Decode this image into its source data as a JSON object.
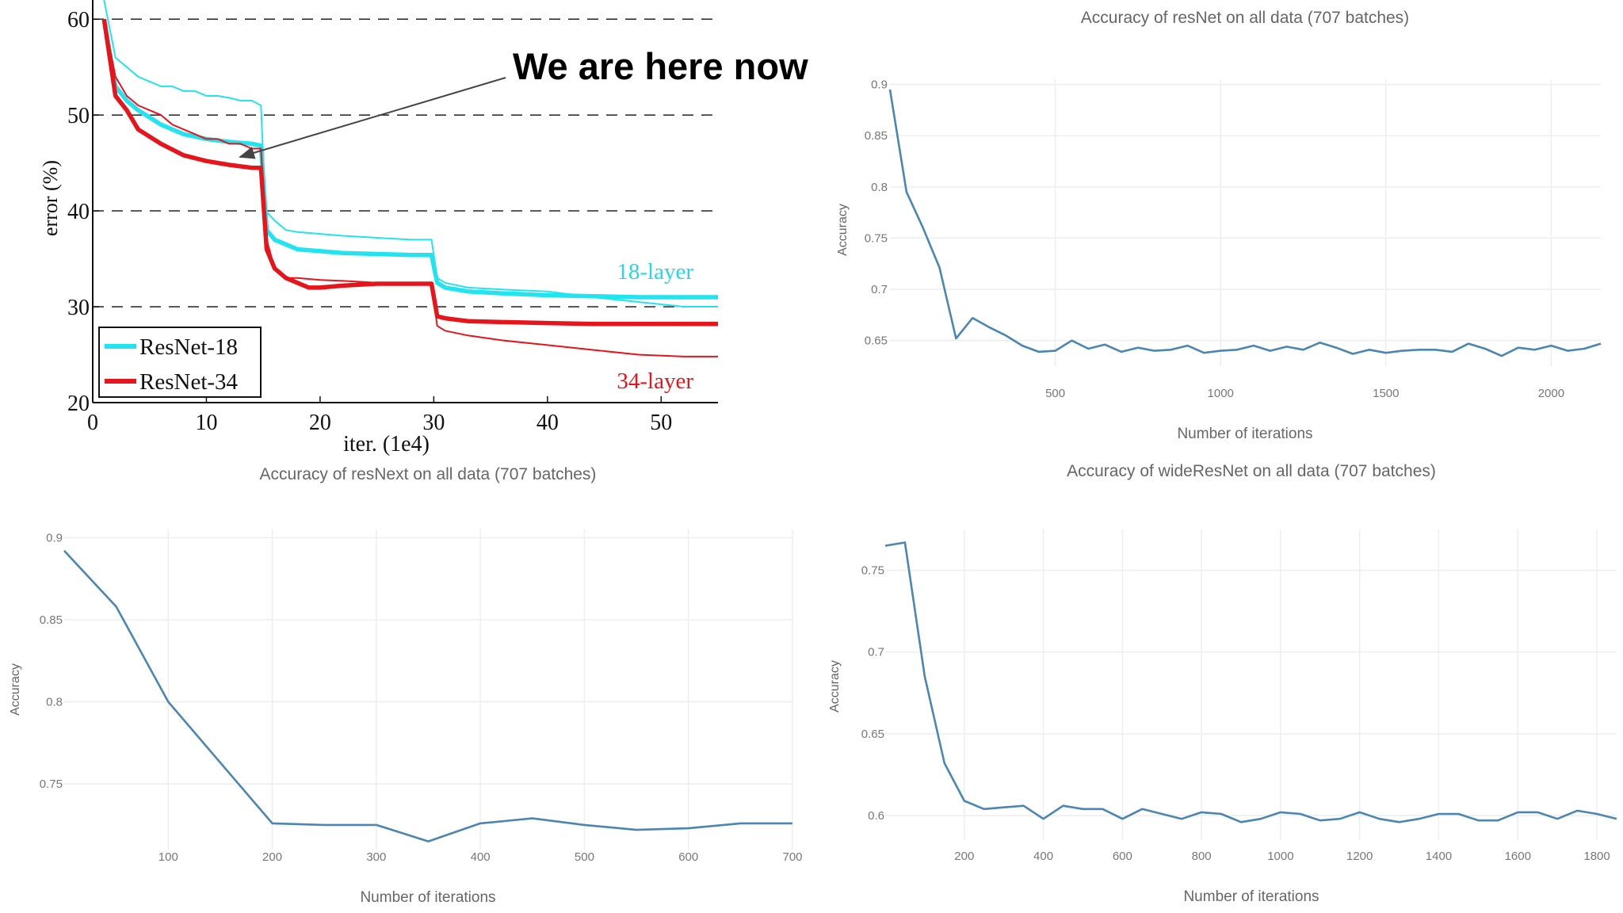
{
  "annotation": {
    "text": "We are here now"
  },
  "chart_data": [
    {
      "type": "line",
      "xlabel": "iter. (1e4)",
      "ylabel": "error (%)",
      "xlim": [
        0,
        55
      ],
      "ylim": [
        20,
        62
      ],
      "xticks": [
        0,
        10,
        20,
        30,
        40,
        50
      ],
      "yticks": [
        20,
        30,
        40,
        50,
        60
      ],
      "grid": "dashed horizontal",
      "legend": [
        "ResNet-18",
        "ResNet-34"
      ],
      "legend_position": "bottom-left",
      "annotations": [
        "18-layer",
        "34-layer"
      ],
      "series": [
        {
          "name": "ResNet-18 (train)",
          "color": "#22e4f0",
          "x": [
            1,
            2,
            3,
            4,
            5,
            6,
            7,
            8,
            9,
            10,
            11,
            12,
            13,
            14,
            14.8,
            15.2,
            16,
            17,
            18,
            20,
            22,
            25,
            28,
            29.8,
            30.3,
            31,
            33,
            36,
            40,
            44,
            48,
            52,
            55
          ],
          "y": [
            62,
            56,
            55,
            54,
            53.5,
            53,
            53,
            52.5,
            52.5,
            52,
            52,
            51.8,
            51.5,
            51.5,
            51,
            40,
            39,
            38,
            37.8,
            37.6,
            37.4,
            37.2,
            37,
            37,
            33,
            32.5,
            32,
            31.8,
            31.6,
            31,
            30.5,
            30,
            30
          ]
        },
        {
          "name": "ResNet-18 (val)",
          "color": "#22e4f0",
          "x": [
            1,
            2,
            3,
            4,
            6,
            8,
            10,
            12,
            14,
            14.8,
            15.3,
            16,
            17,
            18,
            20,
            22,
            25,
            28,
            29.8,
            30.3,
            31,
            33,
            36,
            40,
            44,
            48,
            52,
            55
          ],
          "y": [
            60,
            53,
            51.5,
            50.5,
            49,
            48,
            47.5,
            47.2,
            47,
            46.8,
            38,
            37,
            36.5,
            36,
            35.8,
            35.6,
            35.5,
            35.4,
            35.4,
            32.5,
            32,
            31.6,
            31.4,
            31.2,
            31.1,
            31,
            31,
            31
          ]
        },
        {
          "name": "ResNet-34 (train)",
          "color": "#e8141b",
          "x": [
            1,
            2,
            3,
            4,
            5,
            6,
            7,
            8,
            9,
            10,
            11,
            12,
            13,
            14,
            14.8,
            15.3,
            16,
            17,
            18,
            20,
            22,
            25,
            28,
            29.8,
            30.3,
            31,
            33,
            36,
            40,
            44,
            48,
            52,
            55
          ],
          "y": [
            60,
            54,
            52,
            51,
            50.5,
            50,
            49,
            48.5,
            48,
            47.5,
            47.5,
            47,
            47,
            46.5,
            46.5,
            37,
            34,
            33,
            33,
            32.8,
            32.7,
            32.5,
            32.5,
            32.5,
            28,
            27.5,
            27,
            26.5,
            26,
            25.5,
            25,
            24.8,
            24.8
          ]
        },
        {
          "name": "ResNet-34 (val)",
          "color": "#e8141b",
          "x": [
            1,
            2,
            3,
            4,
            6,
            8,
            10,
            12,
            14,
            14.8,
            15.3,
            16,
            17,
            18,
            19,
            20,
            22,
            25,
            28,
            29.8,
            30.3,
            31,
            33,
            36,
            40,
            44,
            48,
            52,
            55
          ],
          "y": [
            60,
            52,
            50.5,
            48.5,
            47,
            45.8,
            45.2,
            44.8,
            44.5,
            44.5,
            36,
            34,
            33,
            32.5,
            32,
            32,
            32.2,
            32.4,
            32.4,
            32.4,
            29,
            28.8,
            28.5,
            28.4,
            28.3,
            28.2,
            28.2,
            28.2,
            28.2
          ]
        }
      ]
    },
    {
      "type": "line",
      "title": "Accuracy of resNet on all data (707 batches)",
      "xlabel": "Number of iterations",
      "ylabel": "Accuracy",
      "xlim": [
        0,
        2150
      ],
      "ylim": [
        0.625,
        0.905
      ],
      "xticks": [
        500,
        1000,
        1500,
        2000
      ],
      "yticks": [
        0.65,
        0.7,
        0.75,
        0.8,
        0.85,
        0.9
      ],
      "color": "#4a86b4",
      "x": [
        0,
        50,
        100,
        150,
        200,
        250,
        300,
        350,
        400,
        450,
        500,
        550,
        600,
        650,
        700,
        750,
        800,
        850,
        900,
        950,
        1000,
        1050,
        1100,
        1150,
        1200,
        1250,
        1300,
        1350,
        1400,
        1450,
        1500,
        1550,
        1600,
        1650,
        1700,
        1750,
        1800,
        1850,
        1900,
        1950,
        2000,
        2050,
        2100,
        2150
      ],
      "y": [
        0.895,
        0.795,
        0.76,
        0.721,
        0.652,
        0.672,
        0.663,
        0.655,
        0.645,
        0.639,
        0.64,
        0.65,
        0.642,
        0.646,
        0.639,
        0.643,
        0.64,
        0.641,
        0.645,
        0.638,
        0.64,
        0.641,
        0.645,
        0.64,
        0.644,
        0.641,
        0.648,
        0.643,
        0.637,
        0.641,
        0.638,
        0.64,
        0.641,
        0.641,
        0.639,
        0.647,
        0.642,
        0.635,
        0.643,
        0.641,
        0.645,
        0.64,
        0.642,
        0.647
      ]
    },
    {
      "type": "line",
      "title": "Accuracy of resNext on all data (707 batches)",
      "xlabel": "Number of iterations",
      "ylabel": "Accuracy",
      "xlim": [
        0,
        700
      ],
      "ylim": [
        0.71,
        0.905
      ],
      "xticks": [
        100,
        200,
        300,
        400,
        500,
        600,
        700
      ],
      "yticks": [
        0.75,
        0.8,
        0.85,
        0.9
      ],
      "color": "#4a86b4",
      "x": [
        0,
        50,
        100,
        150,
        200,
        250,
        300,
        350,
        400,
        450,
        500,
        550,
        600,
        650,
        700
      ],
      "y": [
        0.892,
        0.858,
        0.8,
        0.763,
        0.726,
        0.725,
        0.725,
        0.715,
        0.726,
        0.729,
        0.725,
        0.722,
        0.723,
        0.726,
        0.726
      ]
    },
    {
      "type": "line",
      "title": "Accuracy of wideResNet on all data (707 batches)",
      "xlabel": "Number of iterations",
      "ylabel": "Accuracy",
      "xlim": [
        0,
        1850
      ],
      "ylim": [
        0.585,
        0.775
      ],
      "xticks": [
        200,
        400,
        600,
        800,
        1000,
        1200,
        1400,
        1600,
        1800
      ],
      "yticks": [
        0.6,
        0.65,
        0.7,
        0.75
      ],
      "color": "#4a86b4",
      "x": [
        0,
        50,
        100,
        150,
        200,
        250,
        300,
        350,
        400,
        450,
        500,
        550,
        600,
        650,
        700,
        750,
        800,
        850,
        900,
        950,
        1000,
        1050,
        1100,
        1150,
        1200,
        1250,
        1300,
        1350,
        1400,
        1450,
        1500,
        1550,
        1600,
        1650,
        1700,
        1750,
        1800,
        1850
      ],
      "y": [
        0.765,
        0.767,
        0.685,
        0.632,
        0.609,
        0.604,
        0.605,
        0.606,
        0.598,
        0.606,
        0.604,
        0.604,
        0.598,
        0.604,
        0.601,
        0.598,
        0.602,
        0.601,
        0.596,
        0.598,
        0.602,
        0.601,
        0.597,
        0.598,
        0.602,
        0.598,
        0.596,
        0.598,
        0.601,
        0.601,
        0.597,
        0.597,
        0.602,
        0.602,
        0.598,
        0.603,
        0.601,
        0.598
      ]
    }
  ]
}
